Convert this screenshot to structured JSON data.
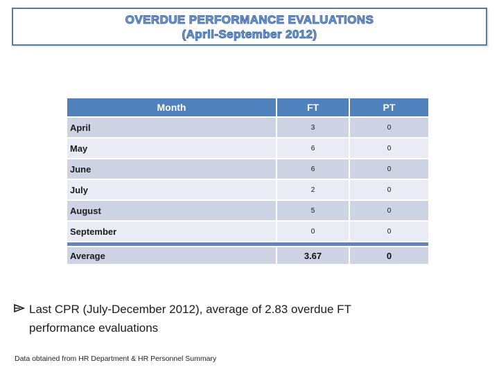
{
  "slide": {
    "title_line1": "OVERDUE PERFORMANCE EVALUATIONS",
    "title_line2": "(April-September 2012)",
    "bullet_text": "Last CPR (July-December 2012), average of 2.83 overdue FT performance evaluations",
    "footer": "Data obtained from HR Department & HR Personnel Summary"
  },
  "table": {
    "columns": [
      "Month",
      "FT",
      "PT"
    ],
    "rows": [
      {
        "month": "April",
        "ft": "3",
        "pt": "0"
      },
      {
        "month": "May",
        "ft": "6",
        "pt": "0"
      },
      {
        "month": "June",
        "ft": "6",
        "pt": "0"
      },
      {
        "month": "July",
        "ft": "2",
        "pt": "0"
      },
      {
        "month": "August",
        "ft": "5",
        "pt": "0"
      },
      {
        "month": "September",
        "ft": "0",
        "pt": "0"
      }
    ],
    "average_row": {
      "month": "Average",
      "ft": "3.67",
      "pt": "0"
    }
  },
  "colors": {
    "header_bg": "#4f81bd",
    "row_dark": "#cdd3e2",
    "row_light": "#e9ecf4",
    "separator_bar": "#6284b8",
    "title_border": "#587b98",
    "title_text": "#3e6cab"
  }
}
